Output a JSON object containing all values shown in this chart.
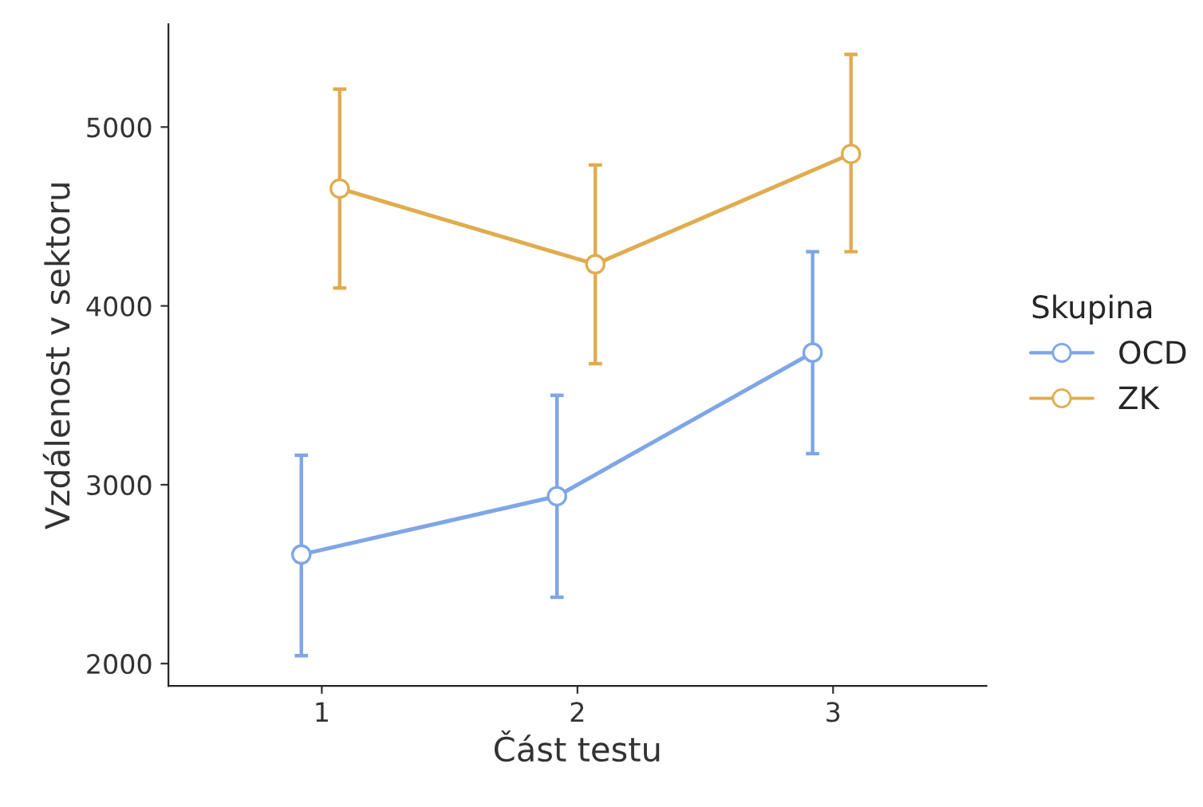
{
  "chart_data": {
    "type": "line",
    "xlabel": "Část testu",
    "ylabel": "Vzdálenost v sektoru",
    "legend_title": "Skupina",
    "xlim": [
      0.4,
      3.6
    ],
    "xticks": [
      1,
      2,
      3
    ],
    "ylim": [
      1875,
      5575
    ],
    "yticks": [
      2000,
      3000,
      4000,
      5000
    ],
    "series": [
      {
        "name": "OCD",
        "color": "#7fa6e6",
        "x": [
          0.92,
          1.92,
          2.92
        ],
        "values": [
          2610,
          2936,
          3739
        ],
        "errors": [
          [
            2044,
            3165
          ],
          [
            2371,
            3500
          ],
          [
            3174,
            4303
          ]
        ]
      },
      {
        "name": "ZK",
        "color": "#e0ac4e",
        "x": [
          1.07,
          2.07,
          3.07
        ],
        "values": [
          4656,
          4233,
          4850
        ],
        "errors": [
          [
            4100,
            5212
          ],
          [
            3677,
            4788
          ],
          [
            4303,
            5406
          ]
        ]
      }
    ],
    "marker": "circle",
    "line_style": "solid",
    "grid": false,
    "legend": "right"
  }
}
